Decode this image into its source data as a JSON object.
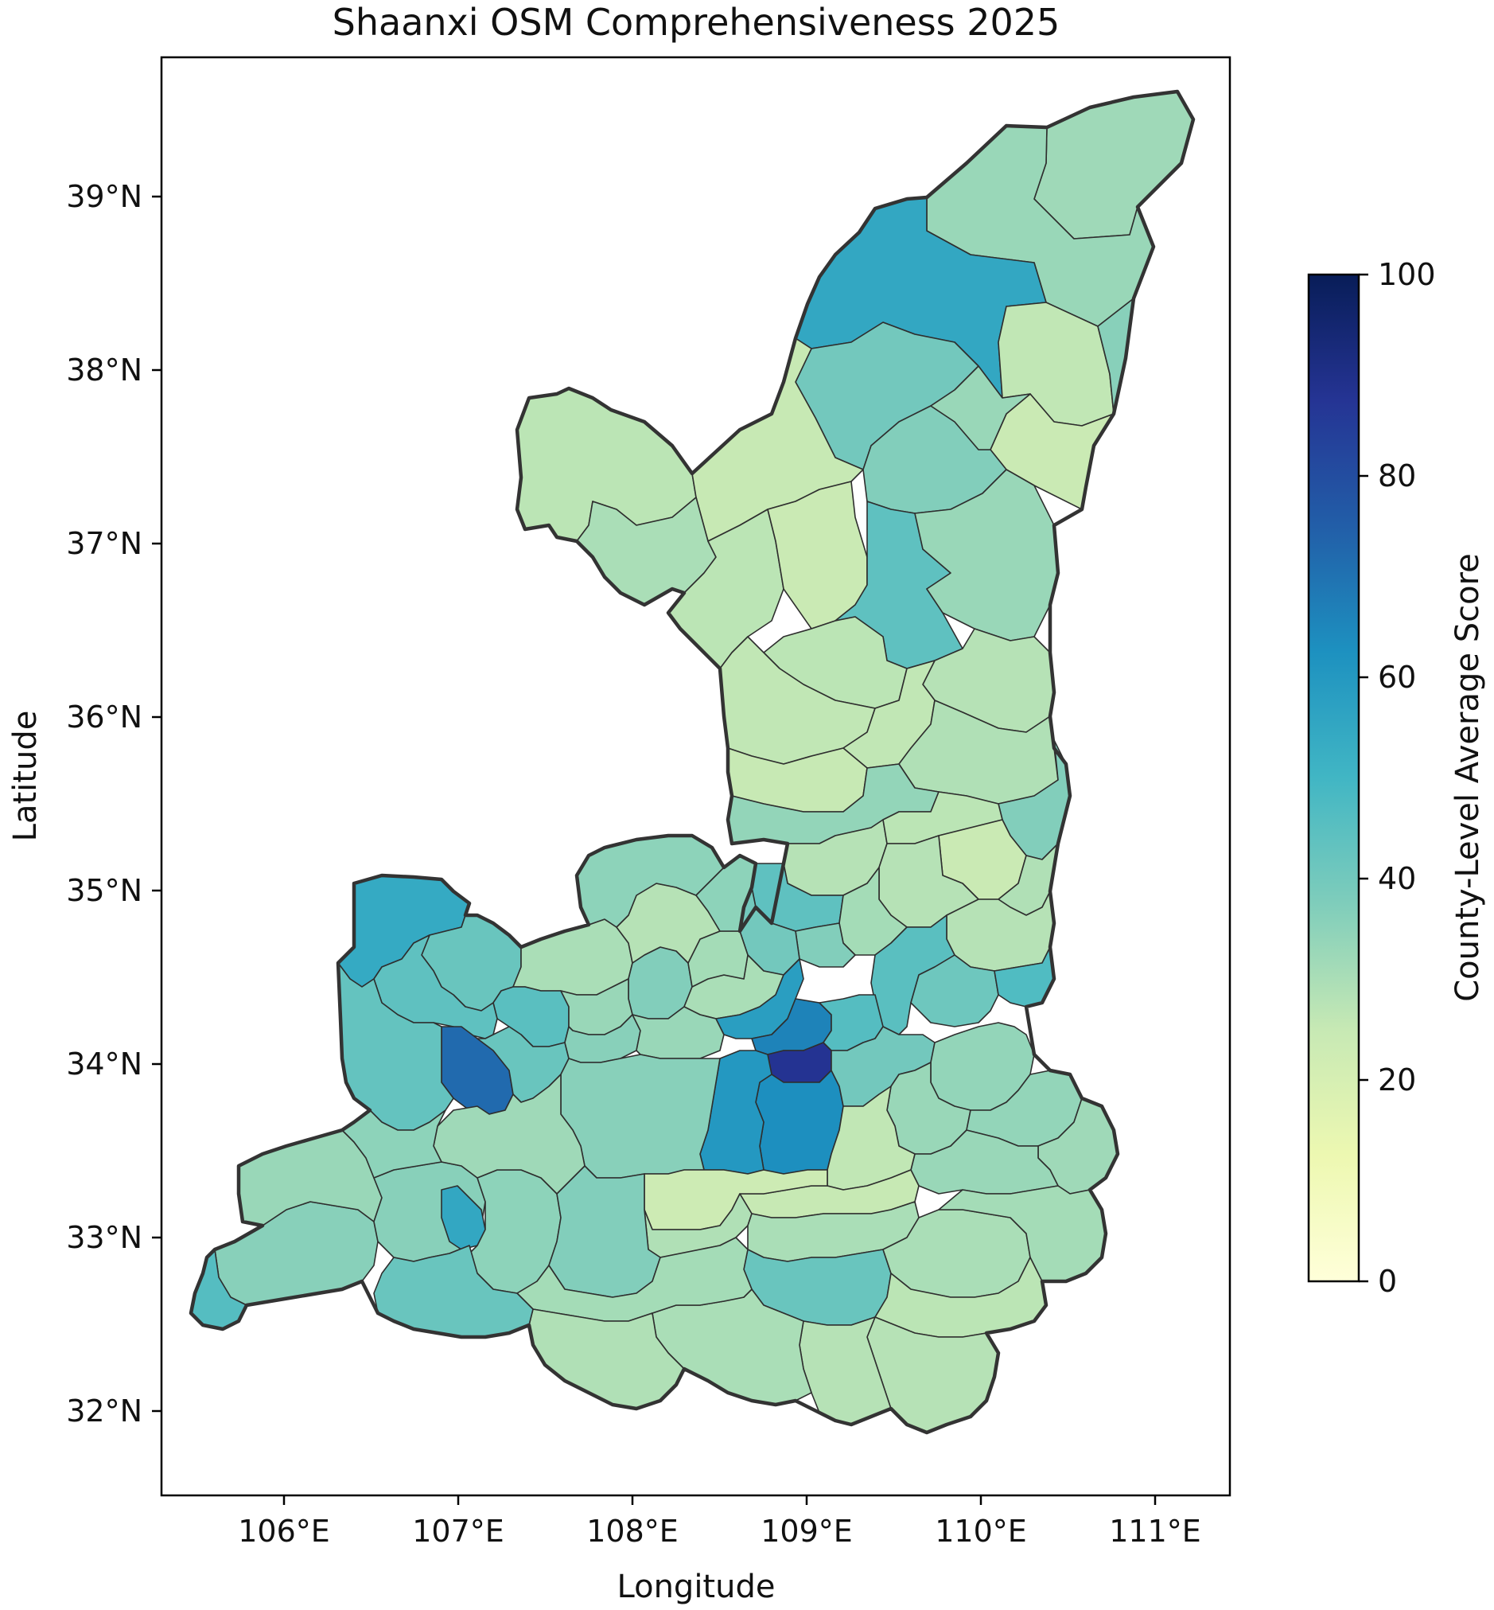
{
  "title": "Shaanxi OSM Comprehensiveness 2025",
  "xlabel": "Longitude",
  "ylabel": "Latitude",
  "x_ticks": [
    "106°E",
    "107°E",
    "108°E",
    "109°E",
    "110°E",
    "111°E"
  ],
  "y_ticks": [
    "32°N",
    "33°N",
    "34°N",
    "35°N",
    "36°N",
    "37°N",
    "38°N",
    "39°N"
  ],
  "colorbar": {
    "label": "County-Level Average Score",
    "ticks": [
      "0",
      "20",
      "40",
      "60",
      "80",
      "100"
    ],
    "range": [
      0,
      100
    ],
    "colormap": "YlGnBu",
    "stops": [
      "#ffffd9",
      "#edf8b1",
      "#c7e9b4",
      "#7fcdbb",
      "#41b6c4",
      "#1d91c0",
      "#225ea8",
      "#253494",
      "#081d58"
    ]
  },
  "colors": {
    "county_border": "#2e2e2e",
    "province_border": "#333333",
    "frame": "#000000"
  },
  "chart_data": {
    "type": "choropleth",
    "title": "Shaanxi OSM Comprehensiveness 2025",
    "xlabel": "Longitude",
    "ylabel": "Latitude",
    "xlim": [
      105.3,
      111.45
    ],
    "ylim": [
      31.55,
      39.8
    ],
    "colorbar_label": "County-Level Average Score",
    "colorbar_range": [
      0,
      100
    ],
    "regions": [
      {
        "id": "north-fugu",
        "score": 32
      },
      {
        "id": "north-shenmu",
        "score": 33
      },
      {
        "id": "yulin-yuyang",
        "score": 55
      },
      {
        "id": "north-hengshan",
        "score": 40
      },
      {
        "id": "north-jiaxian",
        "score": 26
      },
      {
        "id": "north-mizhi",
        "score": 24
      },
      {
        "id": "north-wubao",
        "score": 36
      },
      {
        "id": "west-dingbian",
        "score": 27
      },
      {
        "id": "west-jingbian",
        "score": 25
      },
      {
        "id": "west-wuqi",
        "score": 30
      },
      {
        "id": "center-zhidan",
        "score": 27
      },
      {
        "id": "center-ansai",
        "score": 24
      },
      {
        "id": "center-suide",
        "score": 37
      },
      {
        "id": "center-zizhou",
        "score": 33
      },
      {
        "id": "yanan-baota",
        "score": 44
      },
      {
        "id": "east-yanchuan",
        "score": 33
      },
      {
        "id": "center-ganquan",
        "score": 27
      },
      {
        "id": "center-fuxian",
        "score": 26
      },
      {
        "id": "east-yichuan",
        "score": 28
      },
      {
        "id": "center-luochuan",
        "score": 26
      },
      {
        "id": "center-yijun",
        "score": 25
      },
      {
        "id": "east-huanglong",
        "score": 29
      },
      {
        "id": "east-hancheng",
        "score": 37
      },
      {
        "id": "center-huangling",
        "score": 34
      },
      {
        "id": "center-tongchuan",
        "score": 28
      },
      {
        "id": "center-yaozhou",
        "score": 44
      },
      {
        "id": "center-baishui",
        "score": 27
      },
      {
        "id": "east-heyang",
        "score": 24
      },
      {
        "id": "east-chengcheng",
        "score": 29
      },
      {
        "id": "east-pucheng",
        "score": 28
      },
      {
        "id": "center-fuping",
        "score": 31
      },
      {
        "id": "center-sanyuan",
        "score": 37
      },
      {
        "id": "center-jingyang",
        "score": 40
      },
      {
        "id": "east-dali",
        "score": 28
      },
      {
        "id": "east-weinan",
        "score": 45
      },
      {
        "id": "east-huayin",
        "score": 41
      },
      {
        "id": "east-tongguan",
        "score": 47
      },
      {
        "id": "west-longxian",
        "score": 54
      },
      {
        "id": "west-qianyang",
        "score": 42
      },
      {
        "id": "west-linyou",
        "score": 30
      },
      {
        "id": "west-fengxiang",
        "score": 45
      },
      {
        "id": "center-qianxian",
        "score": 37
      },
      {
        "id": "center-liquan",
        "score": 30
      },
      {
        "id": "center-yongshou",
        "score": 31
      },
      {
        "id": "center-binzhou",
        "score": 28
      },
      {
        "id": "center-xunyi",
        "score": 35
      },
      {
        "id": "center-chunhua",
        "score": 35
      },
      {
        "id": "west-qishan",
        "score": 44
      },
      {
        "id": "west-baoji-weibin",
        "score": 72
      },
      {
        "id": "west-fengxian",
        "score": 43
      },
      {
        "id": "west-meixian",
        "score": 42
      },
      {
        "id": "center-fufeng",
        "score": 33
      },
      {
        "id": "center-wugong",
        "score": 36
      },
      {
        "id": "center-xingping",
        "score": 33
      },
      {
        "id": "center-xianyang",
        "score": 58
      },
      {
        "id": "xian-weiyang",
        "score": 66
      },
      {
        "id": "xian-core",
        "score": 88
      },
      {
        "id": "xian-changan",
        "score": 63
      },
      {
        "id": "xian-huyi",
        "score": 60
      },
      {
        "id": "center-zhouzhi",
        "score": 36
      },
      {
        "id": "xian-lintong",
        "score": 46
      },
      {
        "id": "east-lantian",
        "score": 40
      },
      {
        "id": "east-luonan",
        "score": 34
      },
      {
        "id": "east-shangzhou",
        "score": 33
      },
      {
        "id": "east-danfeng",
        "score": 34
      },
      {
        "id": "east-shangnan",
        "score": 32
      },
      {
        "id": "east-shanyang",
        "score": 33
      },
      {
        "id": "center-zhashui",
        "score": 26
      },
      {
        "id": "center-zhenan",
        "score": 25
      },
      {
        "id": "center-ningshan",
        "score": 23
      },
      {
        "id": "center-shiquan",
        "score": 29
      },
      {
        "id": "center-hanyin",
        "score": 30
      },
      {
        "id": "ankang-hanbin",
        "score": 42
      },
      {
        "id": "south-xunyang",
        "score": 30
      },
      {
        "id": "south-baihe",
        "score": 31
      },
      {
        "id": "south-pingli",
        "score": 27
      },
      {
        "id": "south-zhenping",
        "score": 28
      },
      {
        "id": "south-langao",
        "score": 28
      },
      {
        "id": "south-ziyang",
        "score": 30
      },
      {
        "id": "south-ningqiang",
        "score": 36
      },
      {
        "id": "south-lueyang",
        "score": 33
      },
      {
        "id": "south-mianxian",
        "score": 36
      },
      {
        "id": "hanzhong-hantai",
        "score": 55
      },
      {
        "id": "south-chenggu",
        "score": 35
      },
      {
        "id": "south-yangxian",
        "score": 37
      },
      {
        "id": "south-xixiang",
        "score": 31
      },
      {
        "id": "south-zhenba",
        "score": 29
      },
      {
        "id": "south-nanzheng",
        "score": 42
      },
      {
        "id": "south-liuba",
        "score": 32
      },
      {
        "id": "south-foping",
        "score": 35
      },
      {
        "id": "south-taibai",
        "score": 46
      }
    ]
  }
}
